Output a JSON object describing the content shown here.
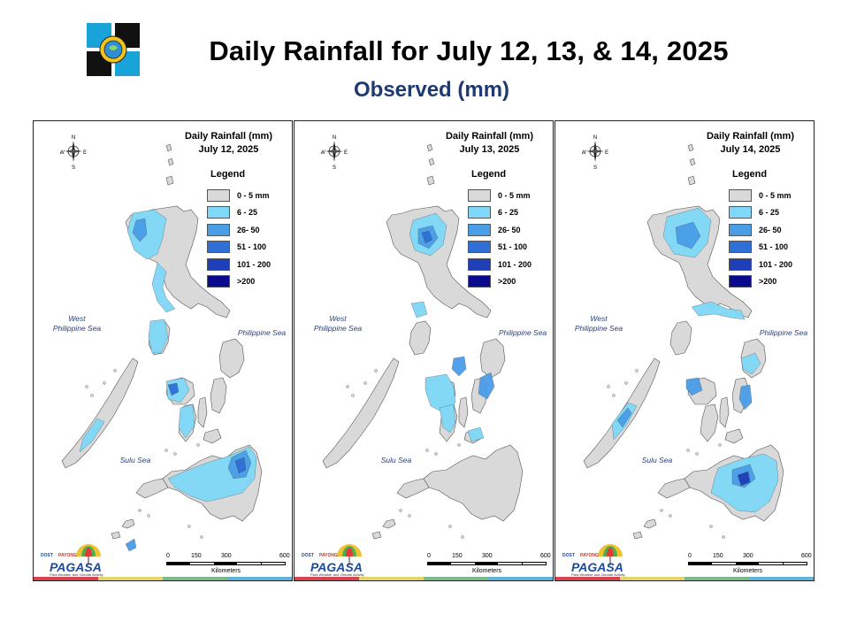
{
  "header": {
    "title": "Daily Rainfall for July 12, 13, & 14, 2025",
    "subtitle": "Observed (mm)"
  },
  "logo": {
    "icon": "dost-seal-icon"
  },
  "panels": [
    {
      "title": "Daily Rainfall (mm)",
      "date": "July 12, 2025",
      "variant": 0
    },
    {
      "title": "Daily Rainfall (mm)",
      "date": "July 13, 2025",
      "variant": 1
    },
    {
      "title": "Daily Rainfall (mm)",
      "date": "July 14, 2025",
      "variant": 2
    }
  ],
  "legend": {
    "title": "Legend",
    "items": [
      {
        "label": "0 - 5 mm",
        "color": "#d9d9d9"
      },
      {
        "label": "6 - 25",
        "color": "#7fd8f7"
      },
      {
        "label": "26- 50",
        "color": "#4a9ee8"
      },
      {
        "label": "51 - 100",
        "color": "#2f6fd6"
      },
      {
        "label": "101 - 200",
        "color": "#1f3fb8"
      },
      {
        "label": ">200",
        "color": "#0a0a8c"
      }
    ]
  },
  "seas": {
    "west": "West Philippine Sea",
    "philippine": "Philippine Sea",
    "sulu": "Sulu Sea"
  },
  "compass": {
    "n": "N",
    "s": "S",
    "e": "E",
    "w": "W",
    "icon": "compass-rose-icon"
  },
  "scale": {
    "ticks": [
      "0",
      "150",
      "300",
      "600"
    ],
    "unit": "Kilometers"
  },
  "brand": {
    "name": "PAGASA",
    "dost": "DOST",
    "payong": "PAYONG",
    "tagline": "Para Weather and Climate Activity",
    "icon": "pagasa-umbrella-icon"
  },
  "stripe_colors": [
    "#d9434f",
    "#e3d36a",
    "#7bb98a",
    "#5fb2d9"
  ]
}
